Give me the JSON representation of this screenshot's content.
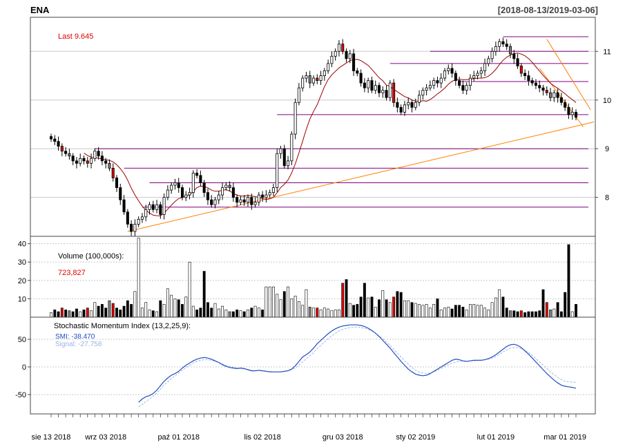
{
  "header": {
    "symbol": "ENA",
    "date_range": "[2018-08-13/2019-03-06]"
  },
  "price_panel": {
    "last_label": "Last 9.645",
    "yticks": [
      "11",
      "10",
      "9",
      "8"
    ],
    "ytick_values": [
      11,
      10,
      9,
      8
    ],
    "ylim": [
      7.2,
      11.7
    ]
  },
  "volume_panel": {
    "label": "Volume (100,000s):",
    "value": "723,827",
    "yticks": [
      "40",
      "30",
      "20",
      "10"
    ],
    "ytick_values": [
      40,
      30,
      20,
      10
    ],
    "ylim": [
      0,
      44
    ]
  },
  "smi_panel": {
    "label": "Stochastic Momentum Index (13,2,25,9):",
    "smi_label": "SMI: -38.470",
    "signal_label": "Signal: -27.758",
    "yticks": [
      "50",
      "0",
      "-50"
    ],
    "ytick_values": [
      50,
      0,
      -50
    ],
    "ylim": [
      -85,
      90
    ]
  },
  "xaxis": {
    "labels": [
      "sie 13 2018",
      "wrz 03 2018",
      "paź 01 2018",
      "lis 02 2018",
      "gru 03 2018",
      "sty 02 2019",
      "lut 01 2019",
      "mar 01 2019"
    ],
    "label_bar_index": [
      0,
      15,
      35,
      58,
      80,
      100,
      122,
      141
    ]
  },
  "colors": {
    "up_fill": "#ffffff",
    "down_fill": "#000000",
    "red_candle": "#dd0000",
    "grey_candle": "#808080",
    "ma": "#990000",
    "trend": "#ff7f00",
    "hline": "#800080",
    "smi": "#1f4fbf",
    "signal": "#9fb2e6",
    "last_label": "#dd0000",
    "volume_value": "#dd0000",
    "grid": "#c8c8c8"
  },
  "chart_data": {
    "type": "candlestick",
    "close": [
      9.2,
      9.15,
      9.05,
      8.95,
      8.9,
      8.85,
      8.75,
      8.7,
      8.8,
      8.75,
      8.7,
      8.8,
      8.95,
      8.85,
      8.75,
      8.7,
      8.6,
      8.4,
      8.2,
      7.95,
      7.7,
      7.45,
      7.3,
      7.45,
      7.55,
      7.6,
      7.75,
      7.85,
      7.75,
      7.85,
      7.65,
      8.0,
      8.15,
      8.25,
      8.3,
      8.2,
      8.0,
      8.05,
      8.1,
      8.5,
      8.45,
      8.3,
      8.1,
      7.95,
      7.85,
      7.95,
      8.05,
      8.2,
      8.25,
      8.2,
      8.0,
      7.9,
      7.95,
      7.9,
      8.0,
      7.85,
      7.9,
      8.05,
      8.0,
      8.05,
      8.1,
      8.2,
      8.9,
      9.0,
      8.65,
      8.75,
      9.3,
      9.95,
      10.25,
      10.45,
      10.5,
      10.35,
      10.45,
      10.4,
      10.5,
      10.6,
      10.75,
      10.9,
      11.0,
      11.15,
      11.0,
      10.85,
      10.95,
      10.6,
      10.55,
      10.35,
      10.25,
      10.4,
      10.2,
      10.3,
      10.15,
      10.2,
      10.05,
      10.35,
      9.95,
      9.85,
      9.75,
      9.9,
      9.95,
      9.85,
      9.95,
      10.1,
      10.2,
      10.25,
      10.3,
      10.4,
      10.35,
      10.45,
      10.6,
      10.65,
      10.55,
      10.4,
      10.3,
      10.2,
      10.3,
      10.45,
      10.5,
      10.55,
      10.6,
      10.75,
      10.85,
      11.0,
      11.1,
      11.2,
      11.15,
      11.1,
      10.95,
      10.85,
      10.7,
      10.55,
      10.5,
      10.4,
      10.35,
      10.3,
      10.25,
      10.2,
      10.15,
      10.05,
      10.15,
      10.05,
      9.95,
      9.85,
      9.7,
      9.75,
      9.645
    ],
    "volume": [
      2.5,
      4.0,
      3.0,
      5.0,
      4.0,
      3.5,
      3.0,
      4.5,
      3.0,
      4.0,
      5.0,
      3.5,
      8.0,
      6.0,
      7.0,
      5.0,
      9.0,
      7.5,
      5.0,
      4.0,
      6.0,
      9.0,
      7.0,
      14.0,
      43.0,
      5.0,
      8.0,
      4.0,
      3.5,
      3.0,
      9.0,
      7.0,
      15.5,
      12.0,
      10.0,
      9.5,
      7.0,
      11.0,
      30.0,
      6.0,
      4.0,
      5.0,
      25.0,
      8.0,
      5.0,
      7.5,
      4.5,
      6.0,
      4.0,
      3.0,
      3.0,
      4.0,
      3.5,
      3.0,
      4.0,
      5.0,
      6.0,
      5.0,
      4.0,
      16.5,
      16.5,
      16.5,
      12.5,
      9.5,
      14.0,
      16.5,
      10.0,
      11.5,
      8.5,
      6.5,
      15.0,
      5.5,
      5.0,
      5.0,
      4.0,
      5.0,
      4.5,
      3.5,
      4.0,
      4.0,
      18.5,
      20.5,
      7.5,
      6.5,
      7.0,
      11.0,
      18.5,
      10.5,
      11.0,
      5.5,
      9.5,
      14.5,
      9.5,
      8.0,
      11.0,
      14.0,
      13.5,
      9.0,
      9.0,
      8.0,
      7.5,
      7.0,
      6.5,
      7.0,
      5.0,
      7.0,
      10.0,
      4.0,
      5.0,
      5.5,
      4.5,
      6.5,
      6.5,
      5.5,
      4.0,
      7.0,
      7.0,
      6.5,
      6.5,
      5.0,
      4.0,
      8.0,
      10.5,
      15.0,
      11.0,
      5.0,
      3.5,
      3.5,
      3.0,
      3.5,
      2.5,
      3.0,
      3.0,
      3.0,
      3.5,
      15.0,
      8.0,
      4.0,
      4.5,
      8.0,
      3.0,
      13.5,
      39.5,
      3.0,
      7.0
    ],
    "smi": [
      -64.0,
      -58.0,
      -54.0,
      -52.0,
      -48.0,
      -42.0,
      -34.0,
      -26.0,
      -20.0,
      -15.0,
      -12.0,
      -8.0,
      -2.0,
      3.0,
      7.0,
      11.0,
      14.0,
      16.0,
      17.0,
      16.0,
      14.0,
      11.0,
      8.0,
      4.0,
      1.0,
      -1.0,
      -2.0,
      -3.0,
      -2.0,
      -3.0,
      -5.0,
      -7.0,
      -7.0,
      -6.0,
      -7.0,
      -8.0,
      -9.0,
      -9.0,
      -9.0,
      -9.0,
      -8.0,
      -7.0,
      -4.0,
      2.0,
      10.0,
      18.0,
      22.0,
      27.0,
      34.0,
      42.0,
      48.0,
      54.0,
      60.0,
      65.0,
      69.0,
      72.0,
      74.0,
      75.0,
      76.0,
      76.0,
      76.0,
      75.0,
      73.0,
      70.0,
      66.0,
      61.0,
      55.0,
      48.0,
      41.0,
      34.0,
      26.0,
      18.0,
      10.0,
      3.0,
      -4.0,
      -9.0,
      -13.0,
      -15.0,
      -16.0,
      -15.0,
      -12.0,
      -8.0,
      -4.0,
      0.0,
      4.0,
      8.0,
      12.0,
      14.0,
      13.0,
      11.0,
      10.0,
      11.0,
      12.0,
      12.0,
      12.0,
      13.0,
      15.0,
      18.0,
      22.0,
      27.0,
      32.0,
      37.0,
      40.0,
      41.0,
      39.0,
      35.0,
      29.0,
      23.0,
      16.0,
      9.0,
      2.0,
      -5.0,
      -12.0,
      -18.0,
      -24.0,
      -29.0,
      -33.0,
      -35.0,
      -36.0,
      -37.0,
      -38.47
    ],
    "signal": [
      -72.0,
      -68.0,
      -63.0,
      -58.0,
      -53.0,
      -47.0,
      -40.0,
      -33.0,
      -27.0,
      -21.0,
      -16.0,
      -11.0,
      -6.0,
      -1.0,
      3.0,
      7.0,
      10.0,
      12.0,
      13.0,
      13.0,
      12.0,
      10.0,
      8.0,
      5.0,
      3.0,
      1.0,
      -1.0,
      -2.0,
      -3.0,
      -4.0,
      -5.0,
      -6.0,
      -7.0,
      -7.0,
      -7.0,
      -8.0,
      -8.0,
      -9.0,
      -9.0,
      -9.0,
      -8.0,
      -7.0,
      -5.0,
      -2.0,
      3.0,
      9.0,
      15.0,
      20.0,
      26.0,
      33.0,
      39.0,
      45.0,
      51.0,
      56.0,
      61.0,
      65.0,
      68.0,
      70.0,
      71.0,
      72.0,
      72.0,
      71.0,
      70.0,
      68.0,
      65.0,
      61.0,
      56.0,
      51.0,
      45.0,
      39.0,
      32.0,
      25.0,
      18.0,
      11.0,
      5.0,
      -1.0,
      -6.0,
      -9.0,
      -11.0,
      -12.0,
      -11.0,
      -9.0,
      -6.0,
      -3.0,
      1.0,
      4.0,
      7.0,
      9.0,
      10.0,
      10.0,
      10.0,
      11.0,
      11.0,
      12.0,
      12.0,
      13.0,
      14.0,
      16.0,
      19.0,
      23.0,
      27.0,
      31.0,
      34.0,
      35.0,
      35.0,
      33.0,
      30.0,
      26.0,
      21.0,
      15.0,
      9.0,
      3.0,
      -3.0,
      -9.0,
      -14.0,
      -19.0,
      -23.0,
      -26.0,
      -27.0,
      -27.5,
      -27.758
    ],
    "hlines": [
      11.3,
      11.0,
      10.75,
      10.38,
      9.7,
      9.0,
      8.6,
      8.3,
      7.8
    ],
    "trendlines": [
      [
        [
          21,
          7.3
        ],
        [
          149,
          9.55
        ]
      ],
      [
        [
          136,
          11.25
        ],
        [
          148,
          9.8
        ]
      ],
      [
        [
          134,
          10.65
        ],
        [
          146,
          9.45
        ]
      ]
    ]
  }
}
